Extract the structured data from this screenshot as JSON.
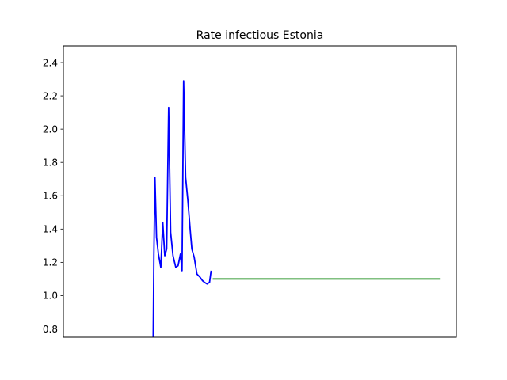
{
  "chart_data": {
    "type": "line",
    "title": "Rate infectious Estonia",
    "xlabel": "",
    "ylabel": "",
    "ylim": [
      0.75,
      2.5
    ],
    "xlim": [
      0,
      100
    ],
    "grid": false,
    "yticks": [
      "0.8",
      "1.0",
      "1.2",
      "1.4",
      "1.6",
      "1.8",
      "2.0",
      "2.2",
      "2.4"
    ],
    "series": [
      {
        "color": "#0000ff",
        "points": [
          [
            22.86,
            0.75
          ],
          [
            23.05,
            1.25
          ],
          [
            23.3,
            1.71
          ],
          [
            23.7,
            1.35
          ],
          [
            24.2,
            1.25
          ],
          [
            24.8,
            1.17
          ],
          [
            25.3,
            1.44
          ],
          [
            25.8,
            1.24
          ],
          [
            26.3,
            1.28
          ],
          [
            26.8,
            2.13
          ],
          [
            27.3,
            1.38
          ],
          [
            27.9,
            1.24
          ],
          [
            28.6,
            1.17
          ],
          [
            29.2,
            1.18
          ],
          [
            29.8,
            1.25
          ],
          [
            30.2,
            1.15
          ],
          [
            30.6,
            2.29
          ],
          [
            31.1,
            1.71
          ],
          [
            31.7,
            1.57
          ],
          [
            32.3,
            1.39
          ],
          [
            32.7,
            1.28
          ],
          [
            33.3,
            1.23
          ],
          [
            34.0,
            1.13
          ],
          [
            34.8,
            1.11
          ],
          [
            35.4,
            1.09
          ],
          [
            35.9,
            1.08
          ],
          [
            36.6,
            1.07
          ],
          [
            37.2,
            1.08
          ],
          [
            37.6,
            1.15
          ]
        ]
      },
      {
        "color": "#008000",
        "points": [
          [
            38.0,
            1.1
          ],
          [
            96.0,
            1.1
          ]
        ]
      }
    ]
  }
}
